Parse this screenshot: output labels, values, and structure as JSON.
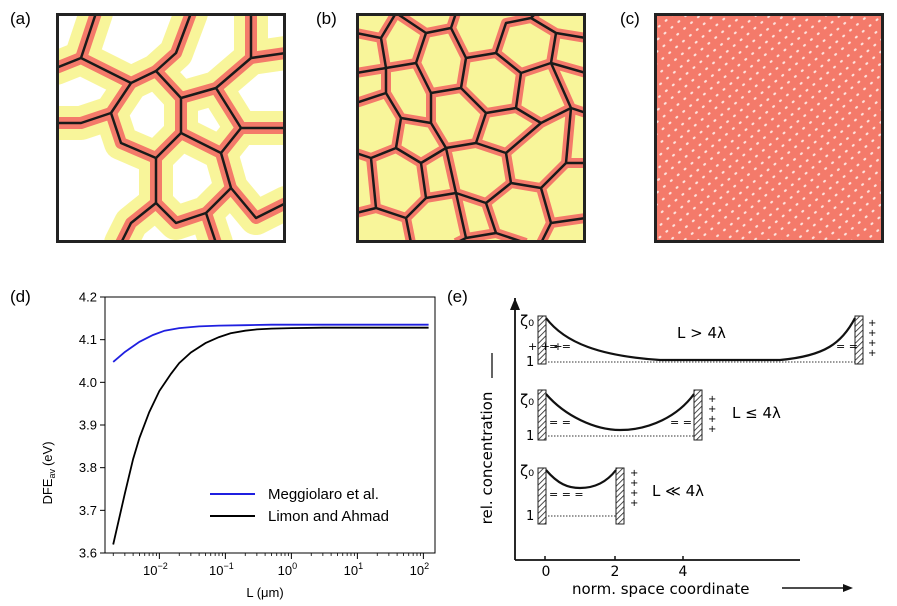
{
  "panels": {
    "a": {
      "label": "(a)"
    },
    "b": {
      "label": "(b)"
    },
    "c": {
      "label": "(c)"
    },
    "d": {
      "label": "(d)"
    },
    "e": {
      "label": "(e)"
    }
  },
  "colors": {
    "boundary": "#1a1a1a",
    "depletion": "#f47a6a",
    "space_charge": "#f8f59a",
    "bulk": "#ffffff",
    "series_meggiolaro": "#1f1fe0",
    "series_limon": "#000000"
  },
  "chart_data": {
    "type": "line",
    "xscale": "log",
    "xlabel": "L (μm)",
    "ylabel_main": "DFE",
    "ylabel_sub": "av",
    "ylabel_unit": "(eV)",
    "xlim": [
      0.0015,
      150
    ],
    "ylim": [
      3.6,
      4.2
    ],
    "xticks": [
      {
        "v": 0.01,
        "base": "10",
        "exp": "−2"
      },
      {
        "v": 0.1,
        "base": "10",
        "exp": "−1"
      },
      {
        "v": 1,
        "base": "10",
        "exp": "0"
      },
      {
        "v": 10,
        "base": "10",
        "exp": "1"
      },
      {
        "v": 100,
        "base": "10",
        "exp": "2"
      }
    ],
    "yticks": [
      "3.6",
      "3.7",
      "3.8",
      "3.9",
      "4.0",
      "4.1",
      "4.2"
    ],
    "legend": {
      "position": "lower-right"
    },
    "series": [
      {
        "name": "Meggiolaro et al.",
        "color": "#1f1fe0",
        "x": [
          0.002,
          0.003,
          0.005,
          0.008,
          0.012,
          0.02,
          0.04,
          0.08,
          0.2,
          0.5,
          1,
          3,
          10,
          30,
          120
        ],
        "y": [
          4.048,
          4.071,
          4.095,
          4.111,
          4.121,
          4.127,
          4.131,
          4.133,
          4.134,
          4.135,
          4.135,
          4.135,
          4.135,
          4.135,
          4.135
        ]
      },
      {
        "name": "Limon and Ahmad",
        "color": "#000000",
        "x": [
          0.002,
          0.003,
          0.004,
          0.005,
          0.007,
          0.01,
          0.015,
          0.02,
          0.03,
          0.05,
          0.08,
          0.12,
          0.2,
          0.3,
          0.5,
          1,
          3,
          10,
          30,
          120
        ],
        "y": [
          3.62,
          3.74,
          3.82,
          3.87,
          3.93,
          3.98,
          4.02,
          4.045,
          4.07,
          4.092,
          4.106,
          4.115,
          4.121,
          4.124,
          4.126,
          4.127,
          4.128,
          4.128,
          4.128,
          4.128
        ]
      }
    ]
  },
  "schematic": {
    "y_axis_label": "rel. concentration",
    "x_axis_label": "norm. space coordinate",
    "x_ticks": [
      "0",
      "2",
      "4"
    ],
    "rows": [
      {
        "zeta": "ζ₀",
        "one": "1",
        "label": "L > 4λ"
      },
      {
        "zeta": "ζ₀",
        "one": "1",
        "label": "L ≤ 4λ"
      },
      {
        "zeta": "ζ₀",
        "one": "1",
        "label": "L ≪ 4λ"
      }
    ]
  }
}
